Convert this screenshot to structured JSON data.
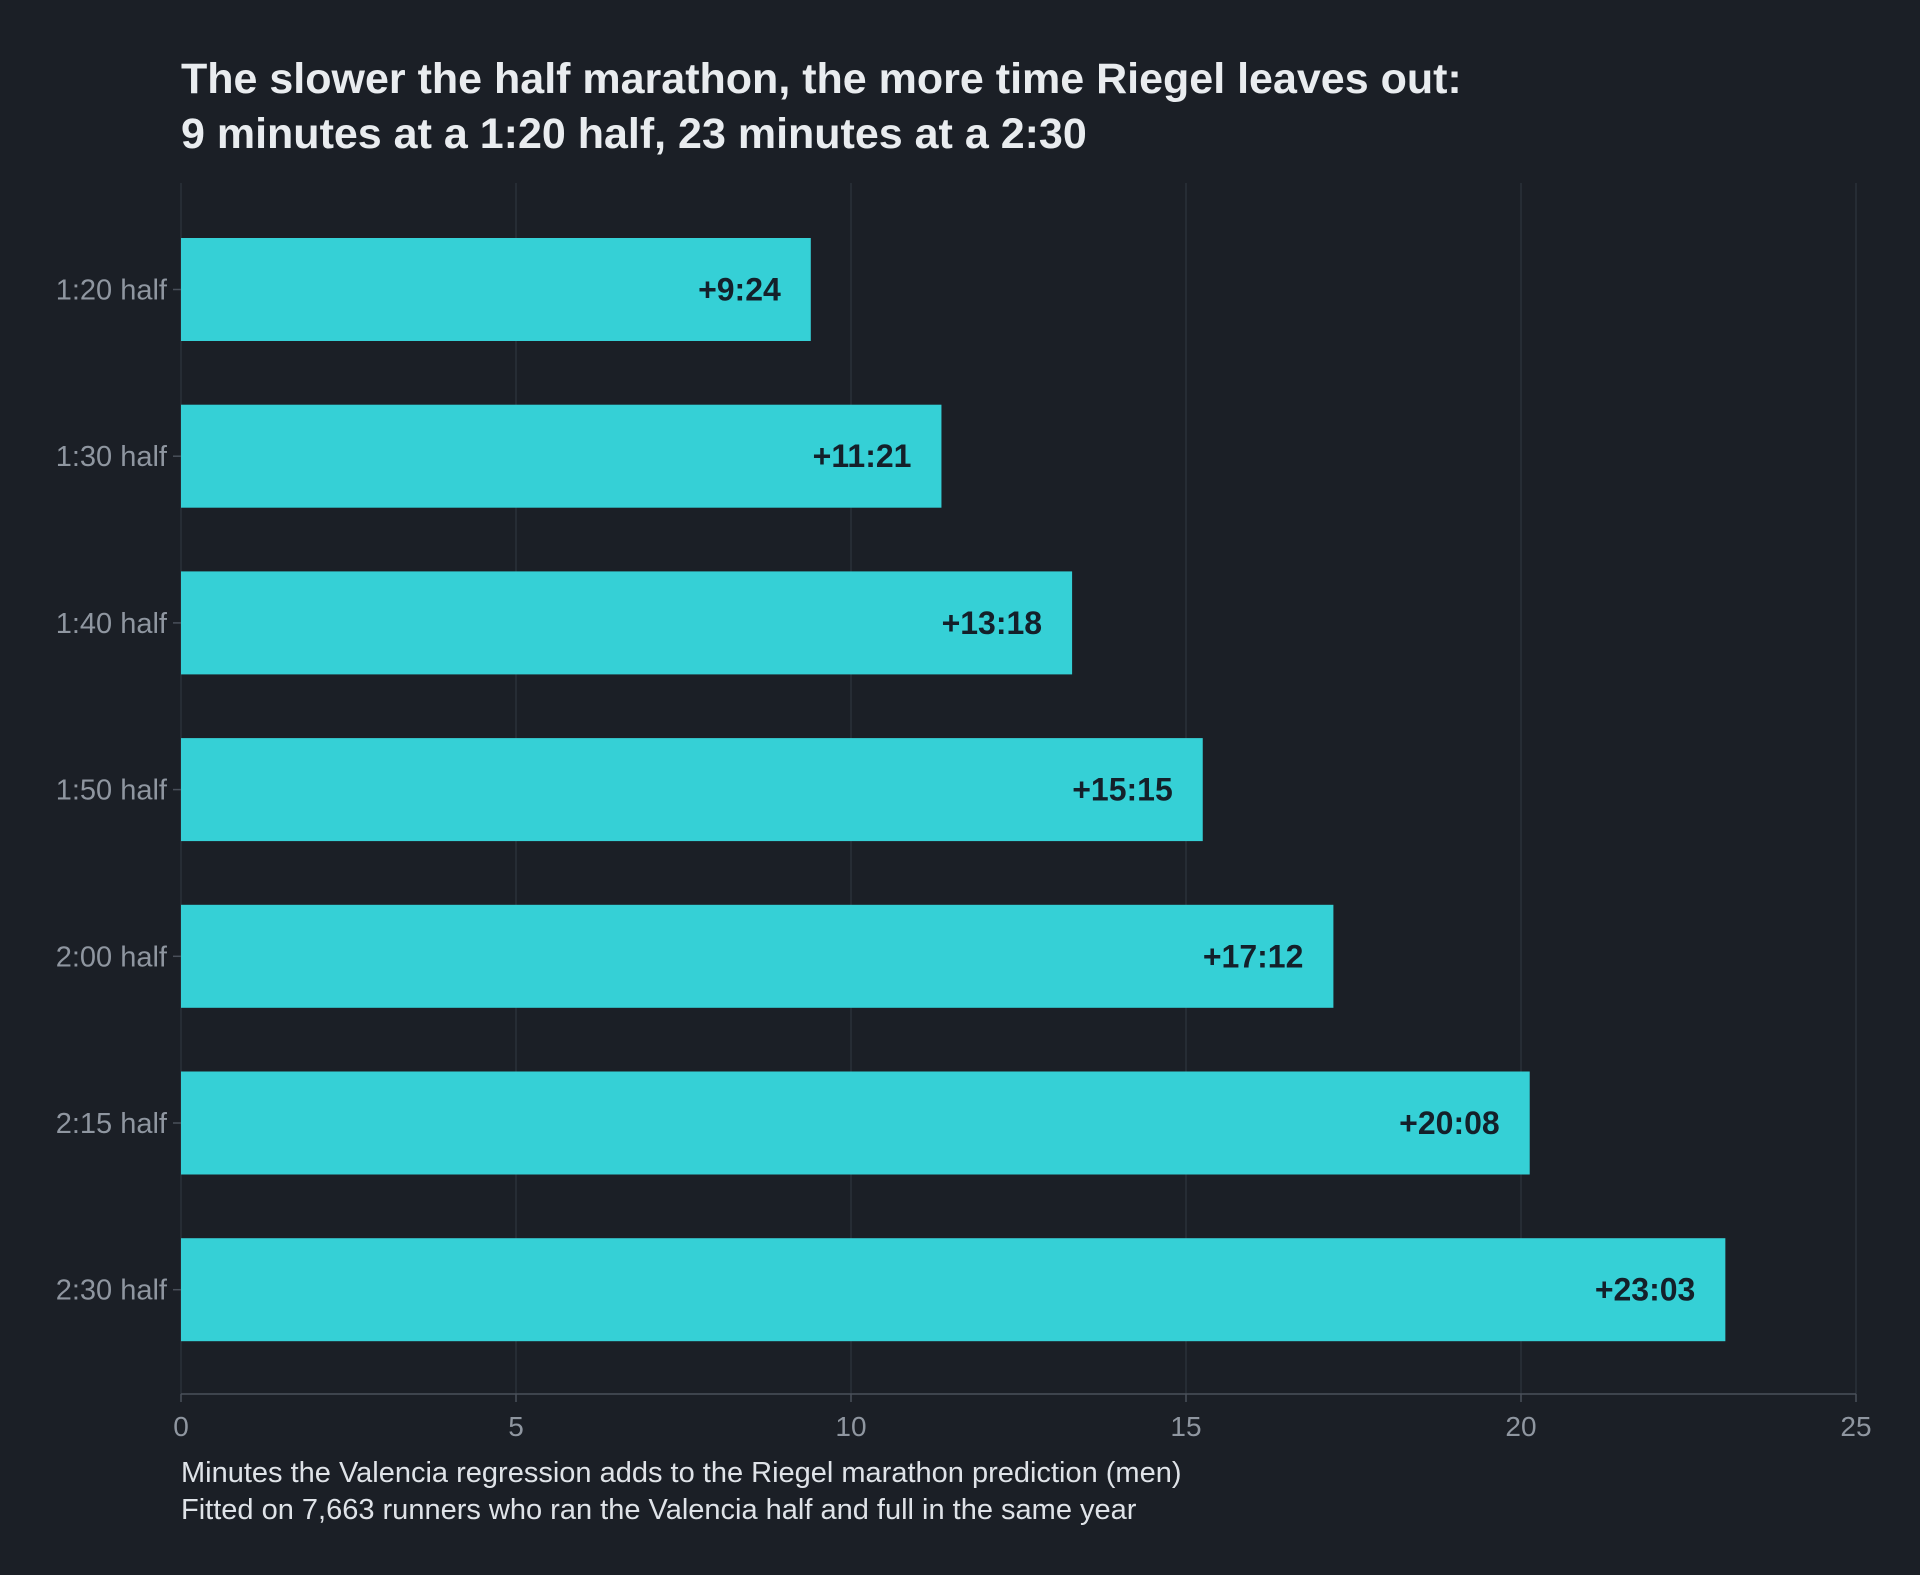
{
  "chart_data": {
    "type": "bar",
    "orientation": "horizontal",
    "title_lines": [
      "The slower the half marathon, the more time Riegel leaves out:",
      "9 minutes at a 1:20 half, 23 minutes at a 2:30"
    ],
    "caption_lines": [
      "Minutes the Valencia regression adds to the Riegel marathon prediction (men)",
      "Fitted on 7,663 runners who ran the Valencia half and full in the same year"
    ],
    "categories": [
      "1:20 half",
      "1:30 half",
      "1:40 half",
      "1:50 half",
      "2:00 half",
      "2:15 half",
      "2:30 half"
    ],
    "values": [
      9.4,
      11.35,
      13.3,
      15.25,
      17.2,
      20.13,
      23.05
    ],
    "data_labels": [
      "+9:24",
      "+11:21",
      "+13:18",
      "+15:15",
      "+17:12",
      "+20:08",
      "+23:03"
    ],
    "xlim": [
      0,
      25
    ],
    "xticks": [
      0,
      5,
      10,
      15,
      20,
      25
    ],
    "grid": "vertical",
    "colors": {
      "background": "#1b1f26",
      "bar": "#35d0d6",
      "grid": "#2a3039",
      "axis": "#4a505a",
      "tick_text": "#8f96a0",
      "title_text": "#e9ecef",
      "caption_text": "#dfe3e8",
      "data_label_text": "#14202a"
    }
  }
}
